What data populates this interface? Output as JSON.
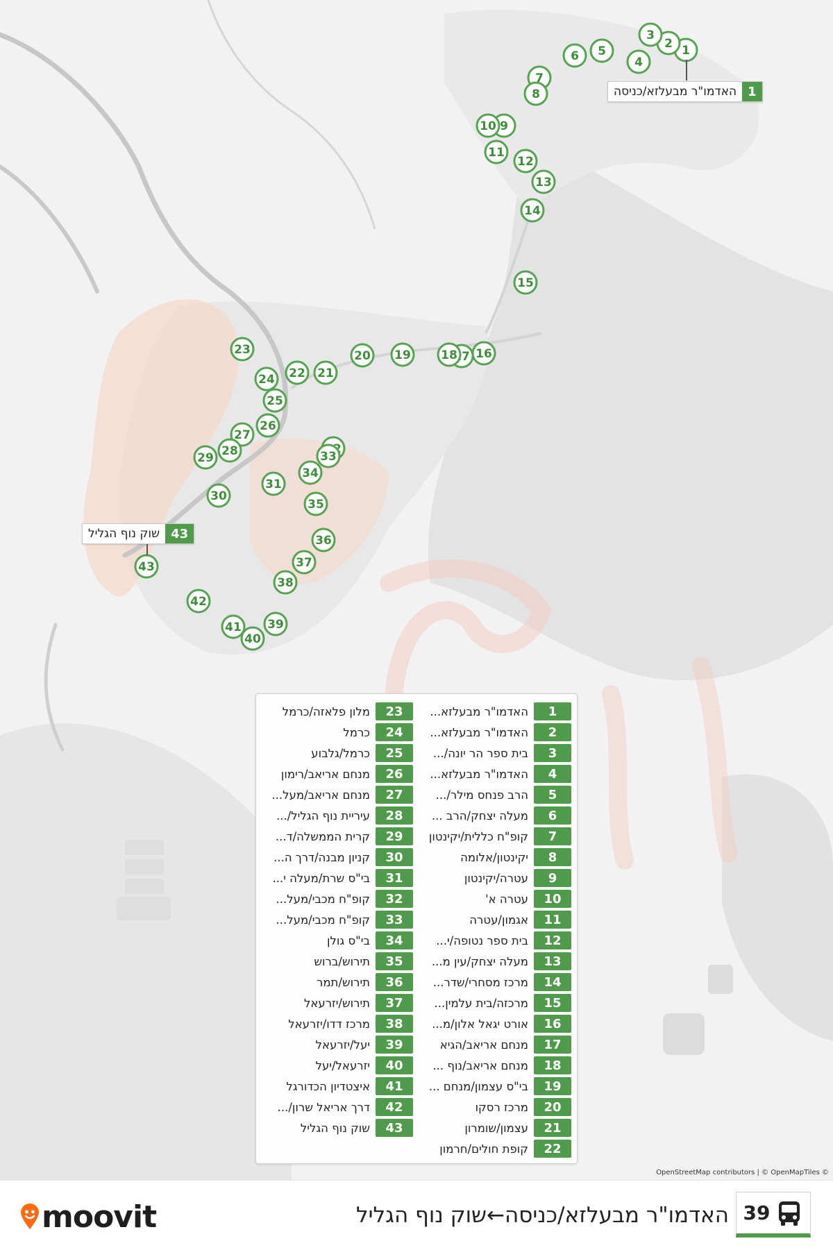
{
  "route": {
    "number": "39",
    "title": "האדמו\"ר מבעלזא/כניסה←שוק נוף הגליל",
    "accent_color": "#4f9a4b",
    "icon": "bus-icon"
  },
  "logo": {
    "text": "moovit",
    "icon": "moovit-pin-icon",
    "color": "#ff6a13"
  },
  "attribution": "OpenStreetMap contributors | © OpenMapTiles ©",
  "callouts": {
    "start": {
      "number": "1",
      "name": "האדמו\"ר מבעלזא/כניסה"
    },
    "end": {
      "number": "43",
      "name": "שוק נוף הגליל"
    }
  },
  "stops": [
    {
      "number": "1",
      "name": "האדמו\"ר מבעלזא..."
    },
    {
      "number": "2",
      "name": "האדמו\"ר מבעלזא..."
    },
    {
      "number": "3",
      "name": "בית ספר הר יונה/..."
    },
    {
      "number": "4",
      "name": "האדמו\"ר מבעלזא..."
    },
    {
      "number": "5",
      "name": "הרב פנחס מילר/..."
    },
    {
      "number": "6",
      "name": "מעלה יצחק/הרב ..."
    },
    {
      "number": "7",
      "name": "קופ\"ח כללית/יקינטון"
    },
    {
      "number": "8",
      "name": "יקינטון/אלומה"
    },
    {
      "number": "9",
      "name": "עטרה/יקינטון"
    },
    {
      "number": "10",
      "name": "עטרה א'"
    },
    {
      "number": "11",
      "name": "אגמון/עטרה"
    },
    {
      "number": "12",
      "name": "בית ספר נטופה/י..."
    },
    {
      "number": "13",
      "name": "מעלה יצחק/עין מ..."
    },
    {
      "number": "14",
      "name": "מרכז מסחרי/שדר..."
    },
    {
      "number": "15",
      "name": "מרכזה/בית עלמין..."
    },
    {
      "number": "16",
      "name": "אורט יגאל אלון/מ..."
    },
    {
      "number": "17",
      "name": "מנחם אריאב/הגיא"
    },
    {
      "number": "18",
      "name": "מנחם אריאב/נוף ..."
    },
    {
      "number": "19",
      "name": "בי\"ס עצמון/מנחם ..."
    },
    {
      "number": "20",
      "name": "מרכז רסקו"
    },
    {
      "number": "21",
      "name": "עצמון/שומרון"
    },
    {
      "number": "22",
      "name": "קופת חולים/חרמון"
    },
    {
      "number": "23",
      "name": "מלון פלאזה/כרמל"
    },
    {
      "number": "24",
      "name": "כרמל"
    },
    {
      "number": "25",
      "name": "כרמל/גלבוע"
    },
    {
      "number": "26",
      "name": "מנחם אריאב/רימון"
    },
    {
      "number": "27",
      "name": "מנחם אריאב/מעל..."
    },
    {
      "number": "28",
      "name": "עיריית נוף הגליל/..."
    },
    {
      "number": "29",
      "name": "קרית הממשלה/ד..."
    },
    {
      "number": "30",
      "name": "קניון מבנה/דרך ה..."
    },
    {
      "number": "31",
      "name": "בי\"ס שרת/מעלה י..."
    },
    {
      "number": "32",
      "name": "קופ\"ח מכבי/מעל..."
    },
    {
      "number": "33",
      "name": "קופ\"ח מכבי/מעל..."
    },
    {
      "number": "34",
      "name": "בי\"ס גולן"
    },
    {
      "number": "35",
      "name": "תירוש/ברוש"
    },
    {
      "number": "36",
      "name": "תירוש/תמר"
    },
    {
      "number": "37",
      "name": "תירוש/יזרעאל"
    },
    {
      "number": "38",
      "name": "מרכז דדו/יזרעאל"
    },
    {
      "number": "39",
      "name": "יעל/יזרעאל"
    },
    {
      "number": "40",
      "name": "יזרעאל/יעל"
    },
    {
      "number": "41",
      "name": "איצטדיון הכדורגל"
    },
    {
      "number": "42",
      "name": "דרך אריאל שרון/..."
    },
    {
      "number": "43",
      "name": "שוק נוף הגליל"
    }
  ]
}
